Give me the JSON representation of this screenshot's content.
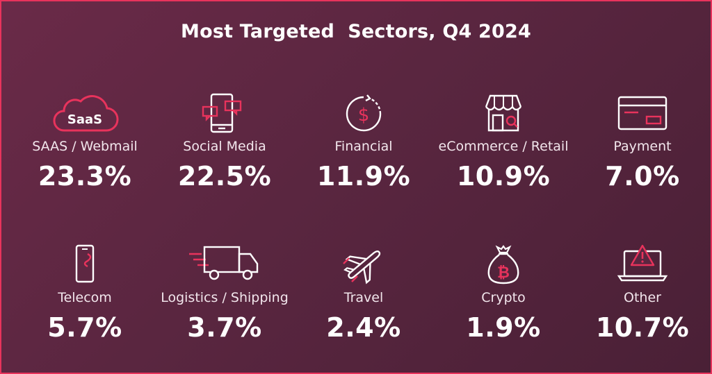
{
  "title": "Most Targeted  Sectors, Q4 2024",
  "colors": {
    "accent": "#e8335c",
    "background": "#5a2640",
    "text": "#ffffff"
  },
  "chart_data": {
    "type": "table",
    "title": "Most Targeted  Sectors, Q4 2024",
    "categories": [
      "SAAS / Webmail",
      "Social Media",
      "Financial",
      "eCommerce / Retail",
      "Payment",
      "Telecom",
      "Logistics / Shipping",
      "Travel",
      "Crypto",
      "Other"
    ],
    "values": [
      23.3,
      22.5,
      11.9,
      10.9,
      7.0,
      5.7,
      3.7,
      2.4,
      1.9,
      10.7
    ],
    "unit": "%"
  },
  "sectors": [
    {
      "label": "SAAS / Webmail",
      "value": "23.3%",
      "icon": "saas-cloud-icon",
      "icon_text": "SaaS"
    },
    {
      "label": "Social Media",
      "value": "22.5%",
      "icon": "mobile-chat-icon"
    },
    {
      "label": "Financial",
      "value": "11.9%",
      "icon": "dollar-cycle-icon"
    },
    {
      "label": "eCommerce / Retail",
      "value": "10.9%",
      "icon": "storefront-icon"
    },
    {
      "label": "Payment",
      "value": "7.0%",
      "icon": "credit-card-icon"
    },
    {
      "label": "Telecom",
      "value": "5.7%",
      "icon": "phone-icon"
    },
    {
      "label": "Logistics / Shipping",
      "value": "3.7%",
      "icon": "delivery-truck-icon"
    },
    {
      "label": "Travel",
      "value": "2.4%",
      "icon": "airplane-icon"
    },
    {
      "label": "Crypto",
      "value": "1.9%",
      "icon": "bitcoin-bag-icon"
    },
    {
      "label": "Other",
      "value": "10.7%",
      "icon": "laptop-warning-icon"
    }
  ]
}
